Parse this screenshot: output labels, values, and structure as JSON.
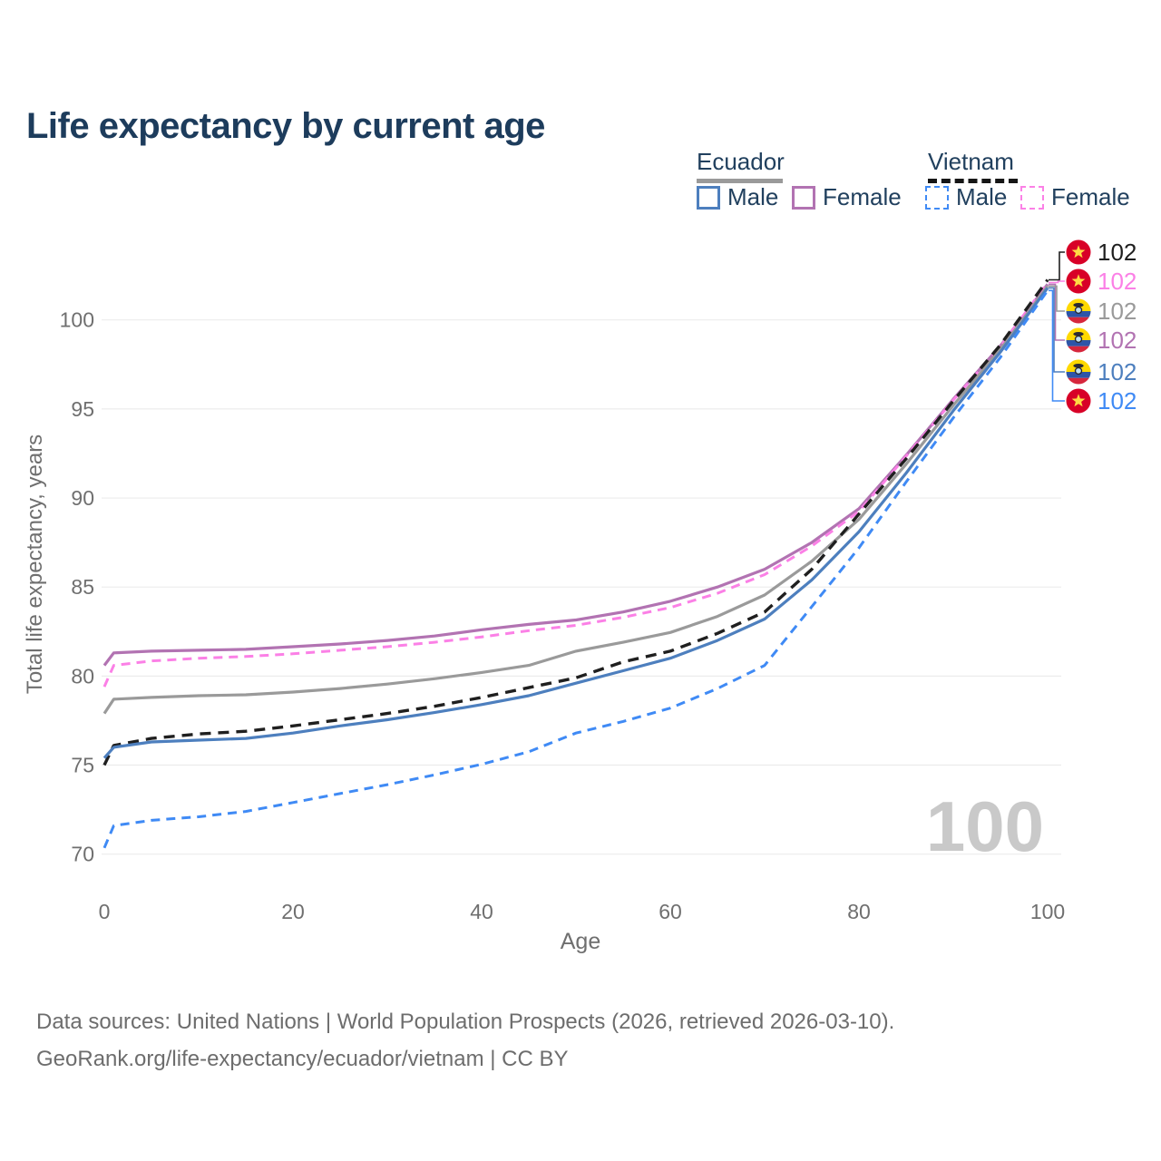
{
  "title": "Life expectancy by current age",
  "legend": {
    "ecuador": {
      "label": "Ecuador",
      "line_color": "#9a9a9a",
      "line_style": "solid",
      "male": {
        "label": "Male",
        "color": "#4d7fbe"
      },
      "female": {
        "label": "Female",
        "color": "#b273b2"
      }
    },
    "vietnam": {
      "label": "Vietnam",
      "line_color": "#161616",
      "line_style": "dashed",
      "male": {
        "label": "Male",
        "color": "#3f8af5"
      },
      "female": {
        "label": "Female",
        "color": "#fb80e6"
      }
    }
  },
  "footer": {
    "line1": "Data sources: United Nations | World Population Prospects (2026, retrieved 2026-03-10).",
    "line2": "GeoRank.org/life-expectancy/ecuador/vietnam | CC BY"
  },
  "chart_data": {
    "type": "line",
    "title": "Life expectancy by current age",
    "xlabel": "Age",
    "ylabel": "Total life expectancy, years",
    "xlim": [
      0,
      100
    ],
    "ylim": [
      69.5,
      102.5
    ],
    "x_ticks": [
      0,
      20,
      40,
      60,
      80,
      100
    ],
    "y_ticks": [
      70,
      75,
      80,
      85,
      90,
      95,
      100
    ],
    "grid": "horizontal-only",
    "legend_position": "top-right",
    "age_watermark": "100",
    "axis_color": "#6f6f6f",
    "grid_color": "#ececec",
    "watermark_color": "#c9c9c9",
    "x": [
      0,
      1,
      5,
      10,
      15,
      20,
      25,
      30,
      35,
      40,
      45,
      50,
      55,
      60,
      65,
      70,
      75,
      80,
      85,
      90,
      95,
      100
    ],
    "series": [
      {
        "id": "ec-female",
        "name": "Ecuador Female",
        "country": "Ecuador",
        "sex": "Female",
        "flag": "ec",
        "color": "#b273b2",
        "dash": null,
        "width": 3.2,
        "end_label": "102",
        "label_slot": 3,
        "values": [
          80.6,
          81.3,
          81.4,
          81.45,
          81.5,
          81.65,
          81.8,
          82.0,
          82.25,
          82.6,
          82.9,
          83.15,
          83.6,
          84.2,
          85.0,
          86.0,
          87.5,
          89.4,
          92.4,
          95.55,
          98.55,
          102.0
        ]
      },
      {
        "id": "vn-female",
        "name": "Vietnam Female",
        "country": "Vietnam",
        "sex": "Female",
        "flag": "vn",
        "color": "#fb80e6",
        "dash": "10 7",
        "width": 3.0,
        "end_label": "102",
        "label_slot": 1,
        "values": [
          79.4,
          80.6,
          80.85,
          81.0,
          81.1,
          81.25,
          81.45,
          81.65,
          81.9,
          82.2,
          82.55,
          82.85,
          83.3,
          83.85,
          84.65,
          85.7,
          87.3,
          89.25,
          92.35,
          95.5,
          98.5,
          102.1
        ]
      },
      {
        "id": "ec-total",
        "name": "Ecuador Both sexes",
        "country": "Ecuador",
        "sex": "Both",
        "flag": "ec",
        "color": "#9a9a9a",
        "dash": null,
        "width": 3.2,
        "end_label": "102",
        "label_slot": 2,
        "values": [
          77.9,
          78.7,
          78.8,
          78.9,
          78.95,
          79.1,
          79.3,
          79.55,
          79.85,
          80.2,
          80.6,
          81.4,
          81.9,
          82.45,
          83.35,
          84.55,
          86.45,
          88.8,
          91.9,
          95.2,
          98.35,
          101.9
        ]
      },
      {
        "id": "vn-total",
        "name": "Vietnam Both sexes",
        "country": "Vietnam",
        "sex": "Both",
        "flag": "vn",
        "color": "#1f1f1f",
        "dash": "12 8",
        "width": 3.4,
        "end_label": "102",
        "label_slot": 0,
        "values": [
          75.0,
          76.1,
          76.5,
          76.75,
          76.9,
          77.2,
          77.55,
          77.9,
          78.3,
          78.8,
          79.35,
          79.9,
          80.8,
          81.4,
          82.4,
          83.6,
          86.0,
          89.1,
          92.2,
          95.45,
          98.6,
          102.25
        ]
      },
      {
        "id": "ec-male",
        "name": "Ecuador Male",
        "country": "Ecuador",
        "sex": "Male",
        "flag": "ec",
        "color": "#4d7fbe",
        "dash": null,
        "width": 3.2,
        "end_label": "102",
        "label_slot": 4,
        "values": [
          75.4,
          76.0,
          76.3,
          76.4,
          76.5,
          76.8,
          77.2,
          77.55,
          77.95,
          78.4,
          78.9,
          79.6,
          80.3,
          81.0,
          82.0,
          83.2,
          85.4,
          88.1,
          91.4,
          94.9,
          98.2,
          101.8
        ]
      },
      {
        "id": "vn-male",
        "name": "Vietnam Male",
        "country": "Vietnam",
        "sex": "Male",
        "flag": "vn",
        "color": "#3f8af5",
        "dash": "10 7",
        "width": 3.0,
        "end_label": "102",
        "label_slot": 5,
        "values": [
          70.35,
          71.6,
          71.9,
          72.1,
          72.4,
          72.9,
          73.4,
          73.9,
          74.45,
          75.05,
          75.75,
          76.8,
          77.45,
          78.2,
          79.3,
          80.6,
          83.9,
          87.2,
          90.9,
          94.5,
          97.9,
          101.65
        ]
      }
    ],
    "end_label_slots_y": [
      278,
      310,
      343,
      375,
      410,
      442
    ],
    "flag_colors": {
      "vn": {
        "bg": "#d80027",
        "star": "#ffda44"
      },
      "ec": {
        "yellow": "#ffd900",
        "blue": "#2e55a8",
        "red": "#d6273d",
        "emblem_dark": "#2b2b33",
        "emblem_light": "#bfe0f2"
      }
    }
  }
}
